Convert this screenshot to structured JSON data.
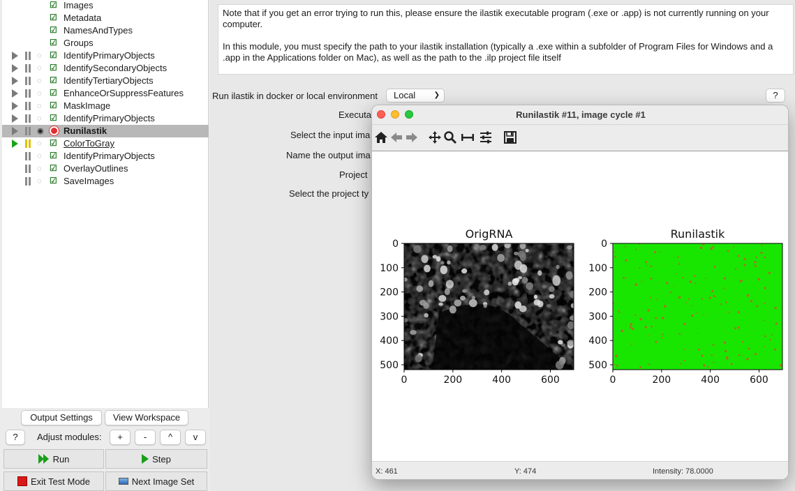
{
  "pipeline": {
    "input_modules": [
      "Images",
      "Metadata",
      "NamesAndTypes",
      "Groups"
    ],
    "modules": [
      {
        "name": "IdentifyPrimaryObjects",
        "state": "normal"
      },
      {
        "name": "IdentifySecondaryObjects",
        "state": "normal"
      },
      {
        "name": "IdentifyTertiaryObjects",
        "state": "normal"
      },
      {
        "name": "EnhanceOrSuppressFeatures",
        "state": "normal"
      },
      {
        "name": "MaskImage",
        "state": "normal"
      },
      {
        "name": "IdentifyPrimaryObjects",
        "state": "normal"
      },
      {
        "name": "Runilastik",
        "state": "selected-error"
      },
      {
        "name": "ColorToGray",
        "state": "current"
      },
      {
        "name": "IdentifyPrimaryObjects",
        "state": "pending"
      },
      {
        "name": "OverlayOutlines",
        "state": "pending"
      },
      {
        "name": "SaveImages",
        "state": "pending"
      }
    ]
  },
  "controls": {
    "output_settings": "Output Settings",
    "view_workspace": "View Workspace",
    "help": "?",
    "adjust_modules": "Adjust modules:",
    "add": "+",
    "remove": "-",
    "up": "^",
    "down": "v",
    "run": "Run",
    "step": "Step",
    "exit_test_mode": "Exit Test Mode",
    "next_image_set": "Next Image Set"
  },
  "settings": {
    "note_paragraph_1": "Note that if you get an error trying to run this, please ensure the ilastik executable program (.exe or .app) is not currently running on your computer.",
    "note_paragraph_2": "In this module, you must specify the path to your ilastik installation (typically a .exe within a subfolder of Program Files for Windows and a .app in the  Applications folder on Mac), as well as the path to the .ilp project file itself",
    "environment_label": "Run ilastik in docker or local environment",
    "environment_value": "Local",
    "help": "?",
    "executable_label": "Executa",
    "input_image_label": "Select the input ima",
    "output_image_label": "Name the output ima",
    "project_label": "Project",
    "project_type_label": "Select the project ty"
  },
  "figure": {
    "title": "Runilastik #11, image cycle #1",
    "toolbar_icons": [
      "home-icon",
      "back-icon",
      "forward-icon",
      "pan-icon",
      "zoom-icon",
      "subplots-icon",
      "configure-icon",
      "save-icon"
    ],
    "status_x": "X: 461",
    "status_y": "Y: 474",
    "status_intensity": "Intensity: 78.0000"
  },
  "chart_data": [
    {
      "type": "image",
      "title": "OrigRNA",
      "xticks": [
        0,
        200,
        400,
        600
      ],
      "yticks": [
        0,
        100,
        200,
        300,
        400,
        500
      ],
      "xlim": [
        0,
        696
      ],
      "ylim": [
        520,
        0
      ],
      "colormap": "gray",
      "content": "grayscale fluorescence micrograph of cells"
    },
    {
      "type": "image",
      "title": "Runilastik",
      "xticks": [
        0,
        200,
        400,
        600
      ],
      "yticks": [
        0,
        100,
        200,
        300,
        400,
        500
      ],
      "xlim": [
        0,
        696
      ],
      "ylim": [
        520,
        0
      ],
      "background_color": "#19e600",
      "marker_color": "#c9582f",
      "content": "green probability map with reddish speckles"
    }
  ]
}
